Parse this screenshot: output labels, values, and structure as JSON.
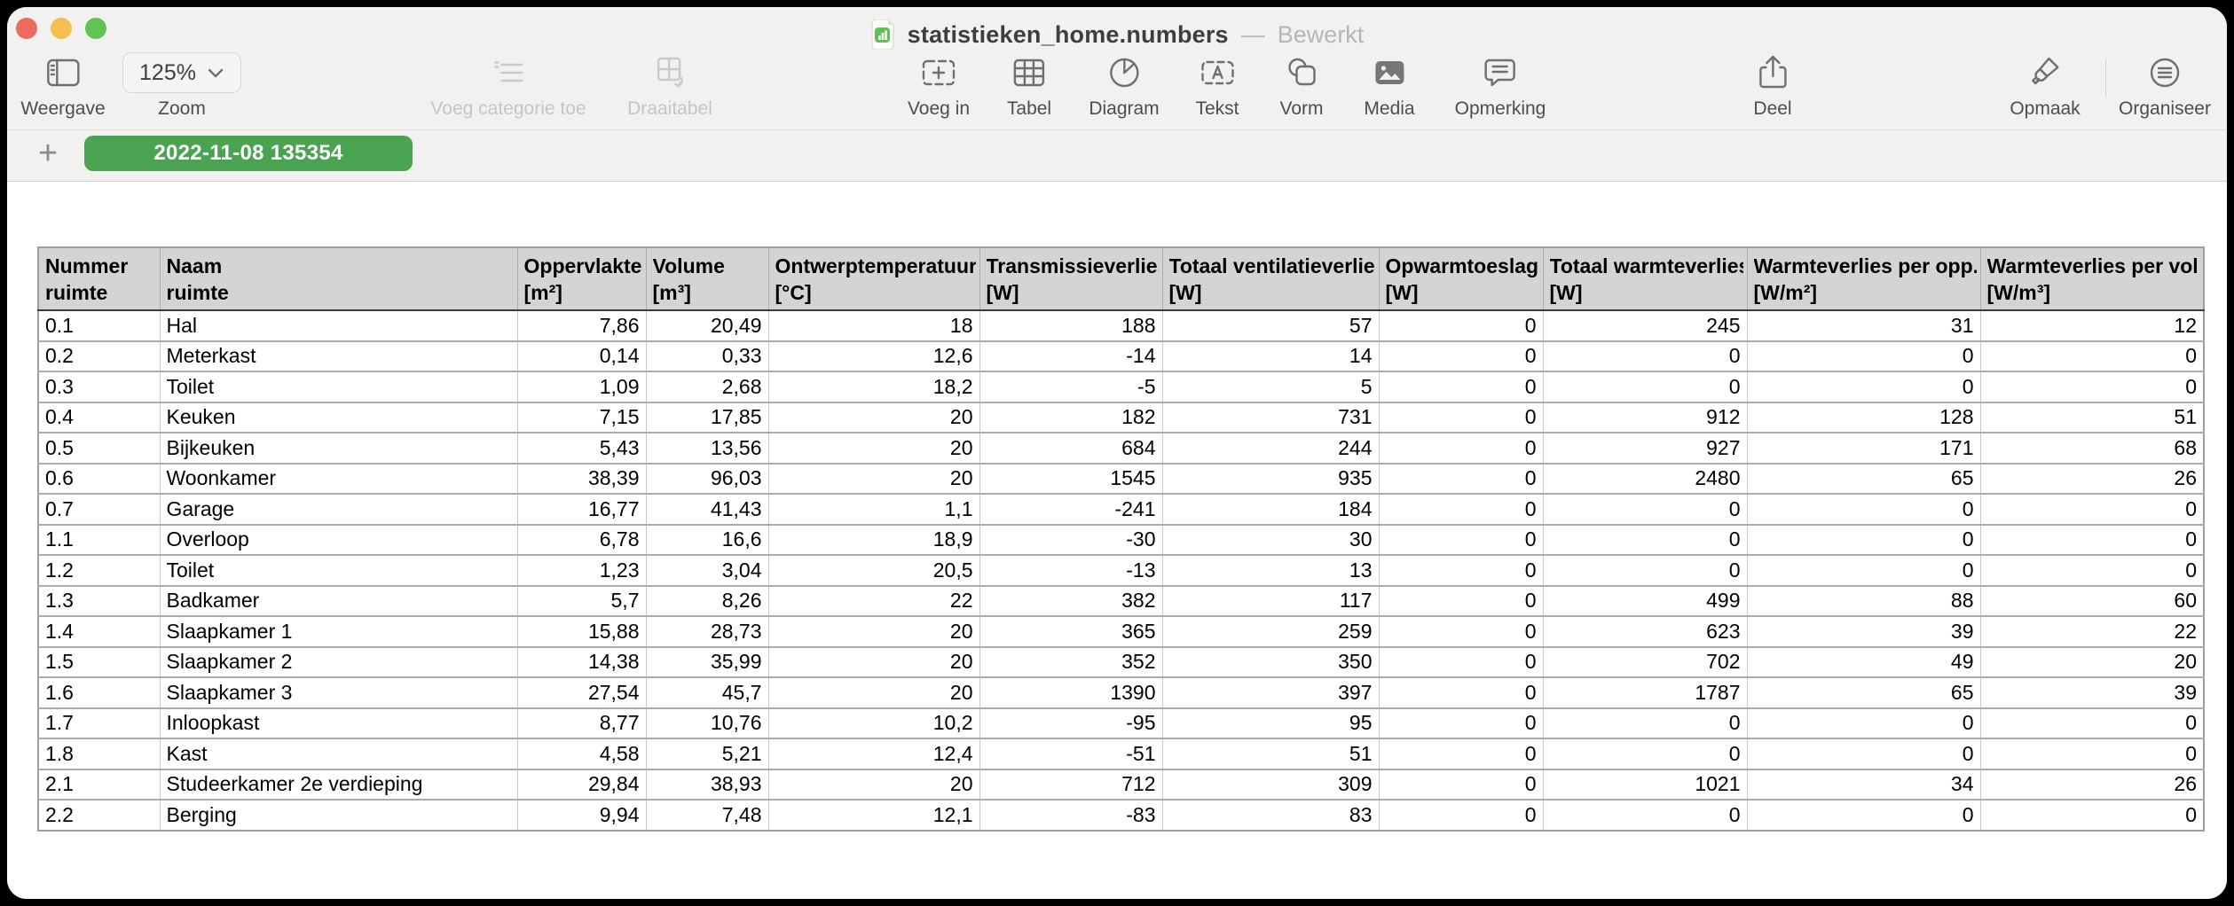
{
  "window": {
    "title": "statistieken_home.numbers",
    "title_separator": "—",
    "status": "Bewerkt"
  },
  "toolbar": {
    "weergave": "Weergave",
    "zoom_label": "Zoom",
    "zoom_value": "125%",
    "voeg_categorie_toe": "Voeg categorie toe",
    "draaitabel": "Draaitabel",
    "voeg_in": "Voeg in",
    "tabel": "Tabel",
    "diagram": "Diagram",
    "tekst": "Tekst",
    "vorm": "Vorm",
    "media": "Media",
    "opmerking": "Opmerking",
    "deel": "Deel",
    "opmaak": "Opmaak",
    "organiseer": "Organiseer"
  },
  "tabbar": {
    "add_label": "+",
    "active_tab": "2022-11-08 135354",
    "tab_color": "#4aa351"
  },
  "table": {
    "columns": [
      {
        "label": "Nummer",
        "unit": "ruimte"
      },
      {
        "label": "Naam",
        "unit": "ruimte"
      },
      {
        "label": "Oppervlakte",
        "unit": "[m²]"
      },
      {
        "label": "Volume",
        "unit": "[m³]"
      },
      {
        "label": "Ontwerptemperatuur",
        "unit": "[°C]"
      },
      {
        "label": "Transmissieverlies",
        "unit": "[W]"
      },
      {
        "label": "Totaal ventilatieverlies",
        "unit": "[W]"
      },
      {
        "label": "Opwarmtoeslag",
        "unit": "[W]"
      },
      {
        "label": "Totaal warmteverlies",
        "unit": "[W]"
      },
      {
        "label": "Warmteverlies per opp.",
        "unit": "[W/m²]"
      },
      {
        "label": "Warmteverlies per vol.",
        "unit": "[W/m³]"
      }
    ],
    "rows": [
      [
        "0.1",
        "Hal",
        "7,86",
        "20,49",
        "18",
        "188",
        "57",
        "0",
        "245",
        "31",
        "12"
      ],
      [
        "0.2",
        "Meterkast",
        "0,14",
        "0,33",
        "12,6",
        "-14",
        "14",
        "0",
        "0",
        "0",
        "0"
      ],
      [
        "0.3",
        "Toilet",
        "1,09",
        "2,68",
        "18,2",
        "-5",
        "5",
        "0",
        "0",
        "0",
        "0"
      ],
      [
        "0.4",
        "Keuken",
        "7,15",
        "17,85",
        "20",
        "182",
        "731",
        "0",
        "912",
        "128",
        "51"
      ],
      [
        "0.5",
        "Bijkeuken",
        "5,43",
        "13,56",
        "20",
        "684",
        "244",
        "0",
        "927",
        "171",
        "68"
      ],
      [
        "0.6",
        "Woonkamer",
        "38,39",
        "96,03",
        "20",
        "1545",
        "935",
        "0",
        "2480",
        "65",
        "26"
      ],
      [
        "0.7",
        "Garage",
        "16,77",
        "41,43",
        "1,1",
        "-241",
        "184",
        "0",
        "0",
        "0",
        "0"
      ],
      [
        "1.1",
        "Overloop",
        "6,78",
        "16,6",
        "18,9",
        "-30",
        "30",
        "0",
        "0",
        "0",
        "0"
      ],
      [
        "1.2",
        "Toilet",
        "1,23",
        "3,04",
        "20,5",
        "-13",
        "13",
        "0",
        "0",
        "0",
        "0"
      ],
      [
        "1.3",
        "Badkamer",
        "5,7",
        "8,26",
        "22",
        "382",
        "117",
        "0",
        "499",
        "88",
        "60"
      ],
      [
        "1.4",
        "Slaapkamer 1",
        "15,88",
        "28,73",
        "20",
        "365",
        "259",
        "0",
        "623",
        "39",
        "22"
      ],
      [
        "1.5",
        "Slaapkamer 2",
        "14,38",
        "35,99",
        "20",
        "352",
        "350",
        "0",
        "702",
        "49",
        "20"
      ],
      [
        "1.6",
        "Slaapkamer 3",
        "27,54",
        "45,7",
        "20",
        "1390",
        "397",
        "0",
        "1787",
        "65",
        "39"
      ],
      [
        "1.7",
        "Inloopkast",
        "8,77",
        "10,76",
        "10,2",
        "-95",
        "95",
        "0",
        "0",
        "0",
        "0"
      ],
      [
        "1.8",
        "Kast",
        "4,58",
        "5,21",
        "12,4",
        "-51",
        "51",
        "0",
        "0",
        "0",
        "0"
      ],
      [
        "2.1",
        "Studeerkamer 2e verdieping",
        "29,84",
        "38,93",
        "20",
        "712",
        "309",
        "0",
        "1021",
        "34",
        "26"
      ],
      [
        "2.2",
        "Berging",
        "9,94",
        "7,48",
        "12,1",
        "-83",
        "83",
        "0",
        "0",
        "0",
        "0"
      ]
    ]
  }
}
